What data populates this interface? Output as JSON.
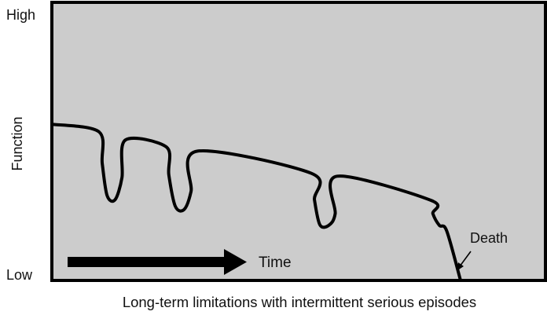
{
  "chart_data": {
    "type": "line",
    "caption": "Long-term limitations with intermittent serious episodes",
    "ylabel": "Function",
    "ytick_high": "High",
    "ytick_low": "Low",
    "time_label": "Time",
    "annotation": "Death",
    "grid": false,
    "xlim": [
      0,
      100
    ],
    "ylim": [
      0,
      100
    ],
    "series": [
      {
        "points": [
          [
            0,
            56.2
          ],
          [
            9.5,
            53.5
          ],
          [
            10.2,
            42
          ],
          [
            11.2,
            30.5
          ],
          [
            12.8,
            29
          ],
          [
            14.2,
            37
          ],
          [
            14.9,
            50.5
          ],
          [
            23.2,
            48
          ],
          [
            23.7,
            38
          ],
          [
            25,
            26.7
          ],
          [
            26.8,
            25.5
          ],
          [
            28.2,
            32
          ],
          [
            29.5,
            46.5
          ],
          [
            52.6,
            38.5
          ],
          [
            53.2,
            29
          ],
          [
            54.3,
            20
          ],
          [
            56.1,
            19.8
          ],
          [
            57.4,
            24
          ],
          [
            57.8,
            37.5
          ],
          [
            76.8,
            28.8
          ],
          [
            77.2,
            24
          ],
          [
            78.5,
            19.8
          ],
          [
            80,
            17.8
          ],
          [
            82.8,
            0
          ]
        ]
      }
    ],
    "colors": {
      "plot_background": "#cccccc",
      "line": "#000000",
      "axes": "#000000"
    }
  }
}
